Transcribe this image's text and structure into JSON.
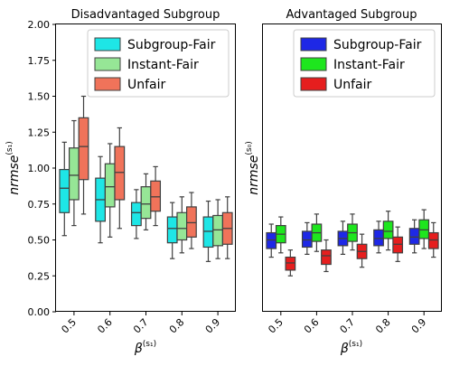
{
  "chart_data": [
    {
      "type": "box",
      "title": "Disadvantaged Subgroup",
      "ylabel": "nrmse",
      "ylabel_superscript": "(s₁)",
      "xlabel": "β",
      "xlabel_superscript": "(s₁)",
      "categories": [
        "0.5",
        "0.6",
        "0.7",
        "0.8",
        "0.9"
      ],
      "ylim": [
        0.0,
        2.0
      ],
      "yticks": [
        "0.00",
        "0.25",
        "0.50",
        "0.75",
        "1.00",
        "1.25",
        "1.50",
        "1.75",
        "2.00"
      ],
      "legend_position": "top-right",
      "series": [
        {
          "name": "Subgroup-Fair",
          "color": "#1ee6e6",
          "boxes": [
            {
              "low": 0.53,
              "q1": 0.69,
              "median": 0.86,
              "q3": 0.99,
              "high": 1.18
            },
            {
              "low": 0.48,
              "q1": 0.63,
              "median": 0.78,
              "q3": 0.93,
              "high": 1.08
            },
            {
              "low": 0.51,
              "q1": 0.6,
              "median": 0.69,
              "q3": 0.76,
              "high": 0.85
            },
            {
              "low": 0.37,
              "q1": 0.48,
              "median": 0.58,
              "q3": 0.66,
              "high": 0.76
            },
            {
              "low": 0.35,
              "q1": 0.45,
              "median": 0.56,
              "q3": 0.66,
              "high": 0.77
            }
          ]
        },
        {
          "name": "Instant-Fair",
          "color": "#96e696",
          "boxes": [
            {
              "low": 0.6,
              "q1": 0.78,
              "median": 0.95,
              "q3": 1.14,
              "high": 1.33
            },
            {
              "low": 0.52,
              "q1": 0.73,
              "median": 0.87,
              "q3": 1.03,
              "high": 1.17
            },
            {
              "low": 0.57,
              "q1": 0.65,
              "median": 0.75,
              "q3": 0.87,
              "high": 0.96
            },
            {
              "low": 0.41,
              "q1": 0.5,
              "median": 0.58,
              "q3": 0.69,
              "high": 0.8
            },
            {
              "low": 0.37,
              "q1": 0.46,
              "median": 0.57,
              "q3": 0.67,
              "high": 0.78
            }
          ]
        },
        {
          "name": "Unfair",
          "color": "#f0735a",
          "boxes": [
            {
              "low": 0.68,
              "q1": 0.92,
              "median": 1.15,
              "q3": 1.35,
              "high": 1.5
            },
            {
              "low": 0.58,
              "q1": 0.78,
              "median": 0.97,
              "q3": 1.15,
              "high": 1.28
            },
            {
              "low": 0.6,
              "q1": 0.7,
              "median": 0.8,
              "q3": 0.91,
              "high": 1.01
            },
            {
              "low": 0.44,
              "q1": 0.52,
              "median": 0.62,
              "q3": 0.73,
              "high": 0.83
            },
            {
              "low": 0.37,
              "q1": 0.47,
              "median": 0.58,
              "q3": 0.69,
              "high": 0.8
            }
          ]
        }
      ]
    },
    {
      "type": "box",
      "title": "Advantaged Subgroup",
      "ylabel": "nrmse",
      "ylabel_superscript": "(s₀)",
      "xlabel": "β",
      "xlabel_superscript": "(s₁)",
      "categories": [
        "0.5",
        "0.6",
        "0.7",
        "0.8",
        "0.9"
      ],
      "ylim": [
        0.0,
        2.0
      ],
      "shared_y": true,
      "legend_position": "top-right",
      "series": [
        {
          "name": "Subgroup-Fair",
          "color": "#1e28e6",
          "boxes": [
            {
              "low": 0.38,
              "q1": 0.44,
              "median": 0.5,
              "q3": 0.55,
              "high": 0.61
            },
            {
              "low": 0.4,
              "q1": 0.45,
              "median": 0.5,
              "q3": 0.56,
              "high": 0.62
            },
            {
              "low": 0.4,
              "q1": 0.46,
              "median": 0.51,
              "q3": 0.56,
              "high": 0.63
            },
            {
              "low": 0.41,
              "q1": 0.46,
              "median": 0.51,
              "q3": 0.57,
              "high": 0.63
            },
            {
              "low": 0.41,
              "q1": 0.47,
              "median": 0.52,
              "q3": 0.58,
              "high": 0.64
            }
          ]
        },
        {
          "name": "Instant-Fair",
          "color": "#1ee61e",
          "boxes": [
            {
              "low": 0.41,
              "q1": 0.48,
              "median": 0.54,
              "q3": 0.6,
              "high": 0.66
            },
            {
              "low": 0.42,
              "q1": 0.49,
              "median": 0.55,
              "q3": 0.61,
              "high": 0.68
            },
            {
              "low": 0.43,
              "q1": 0.49,
              "median": 0.55,
              "q3": 0.61,
              "high": 0.68
            },
            {
              "low": 0.43,
              "q1": 0.51,
              "median": 0.56,
              "q3": 0.63,
              "high": 0.7
            },
            {
              "low": 0.44,
              "q1": 0.51,
              "median": 0.57,
              "q3": 0.64,
              "high": 0.71
            }
          ]
        },
        {
          "name": "Unfair",
          "color": "#e61e1e",
          "boxes": [
            {
              "low": 0.25,
              "q1": 0.29,
              "median": 0.34,
              "q3": 0.38,
              "high": 0.43
            },
            {
              "low": 0.28,
              "q1": 0.33,
              "median": 0.39,
              "q3": 0.43,
              "high": 0.5
            },
            {
              "low": 0.31,
              "q1": 0.37,
              "median": 0.42,
              "q3": 0.47,
              "high": 0.54
            },
            {
              "low": 0.35,
              "q1": 0.41,
              "median": 0.47,
              "q3": 0.52,
              "high": 0.59
            },
            {
              "low": 0.38,
              "q1": 0.44,
              "median": 0.5,
              "q3": 0.55,
              "high": 0.62
            }
          ]
        }
      ]
    }
  ]
}
